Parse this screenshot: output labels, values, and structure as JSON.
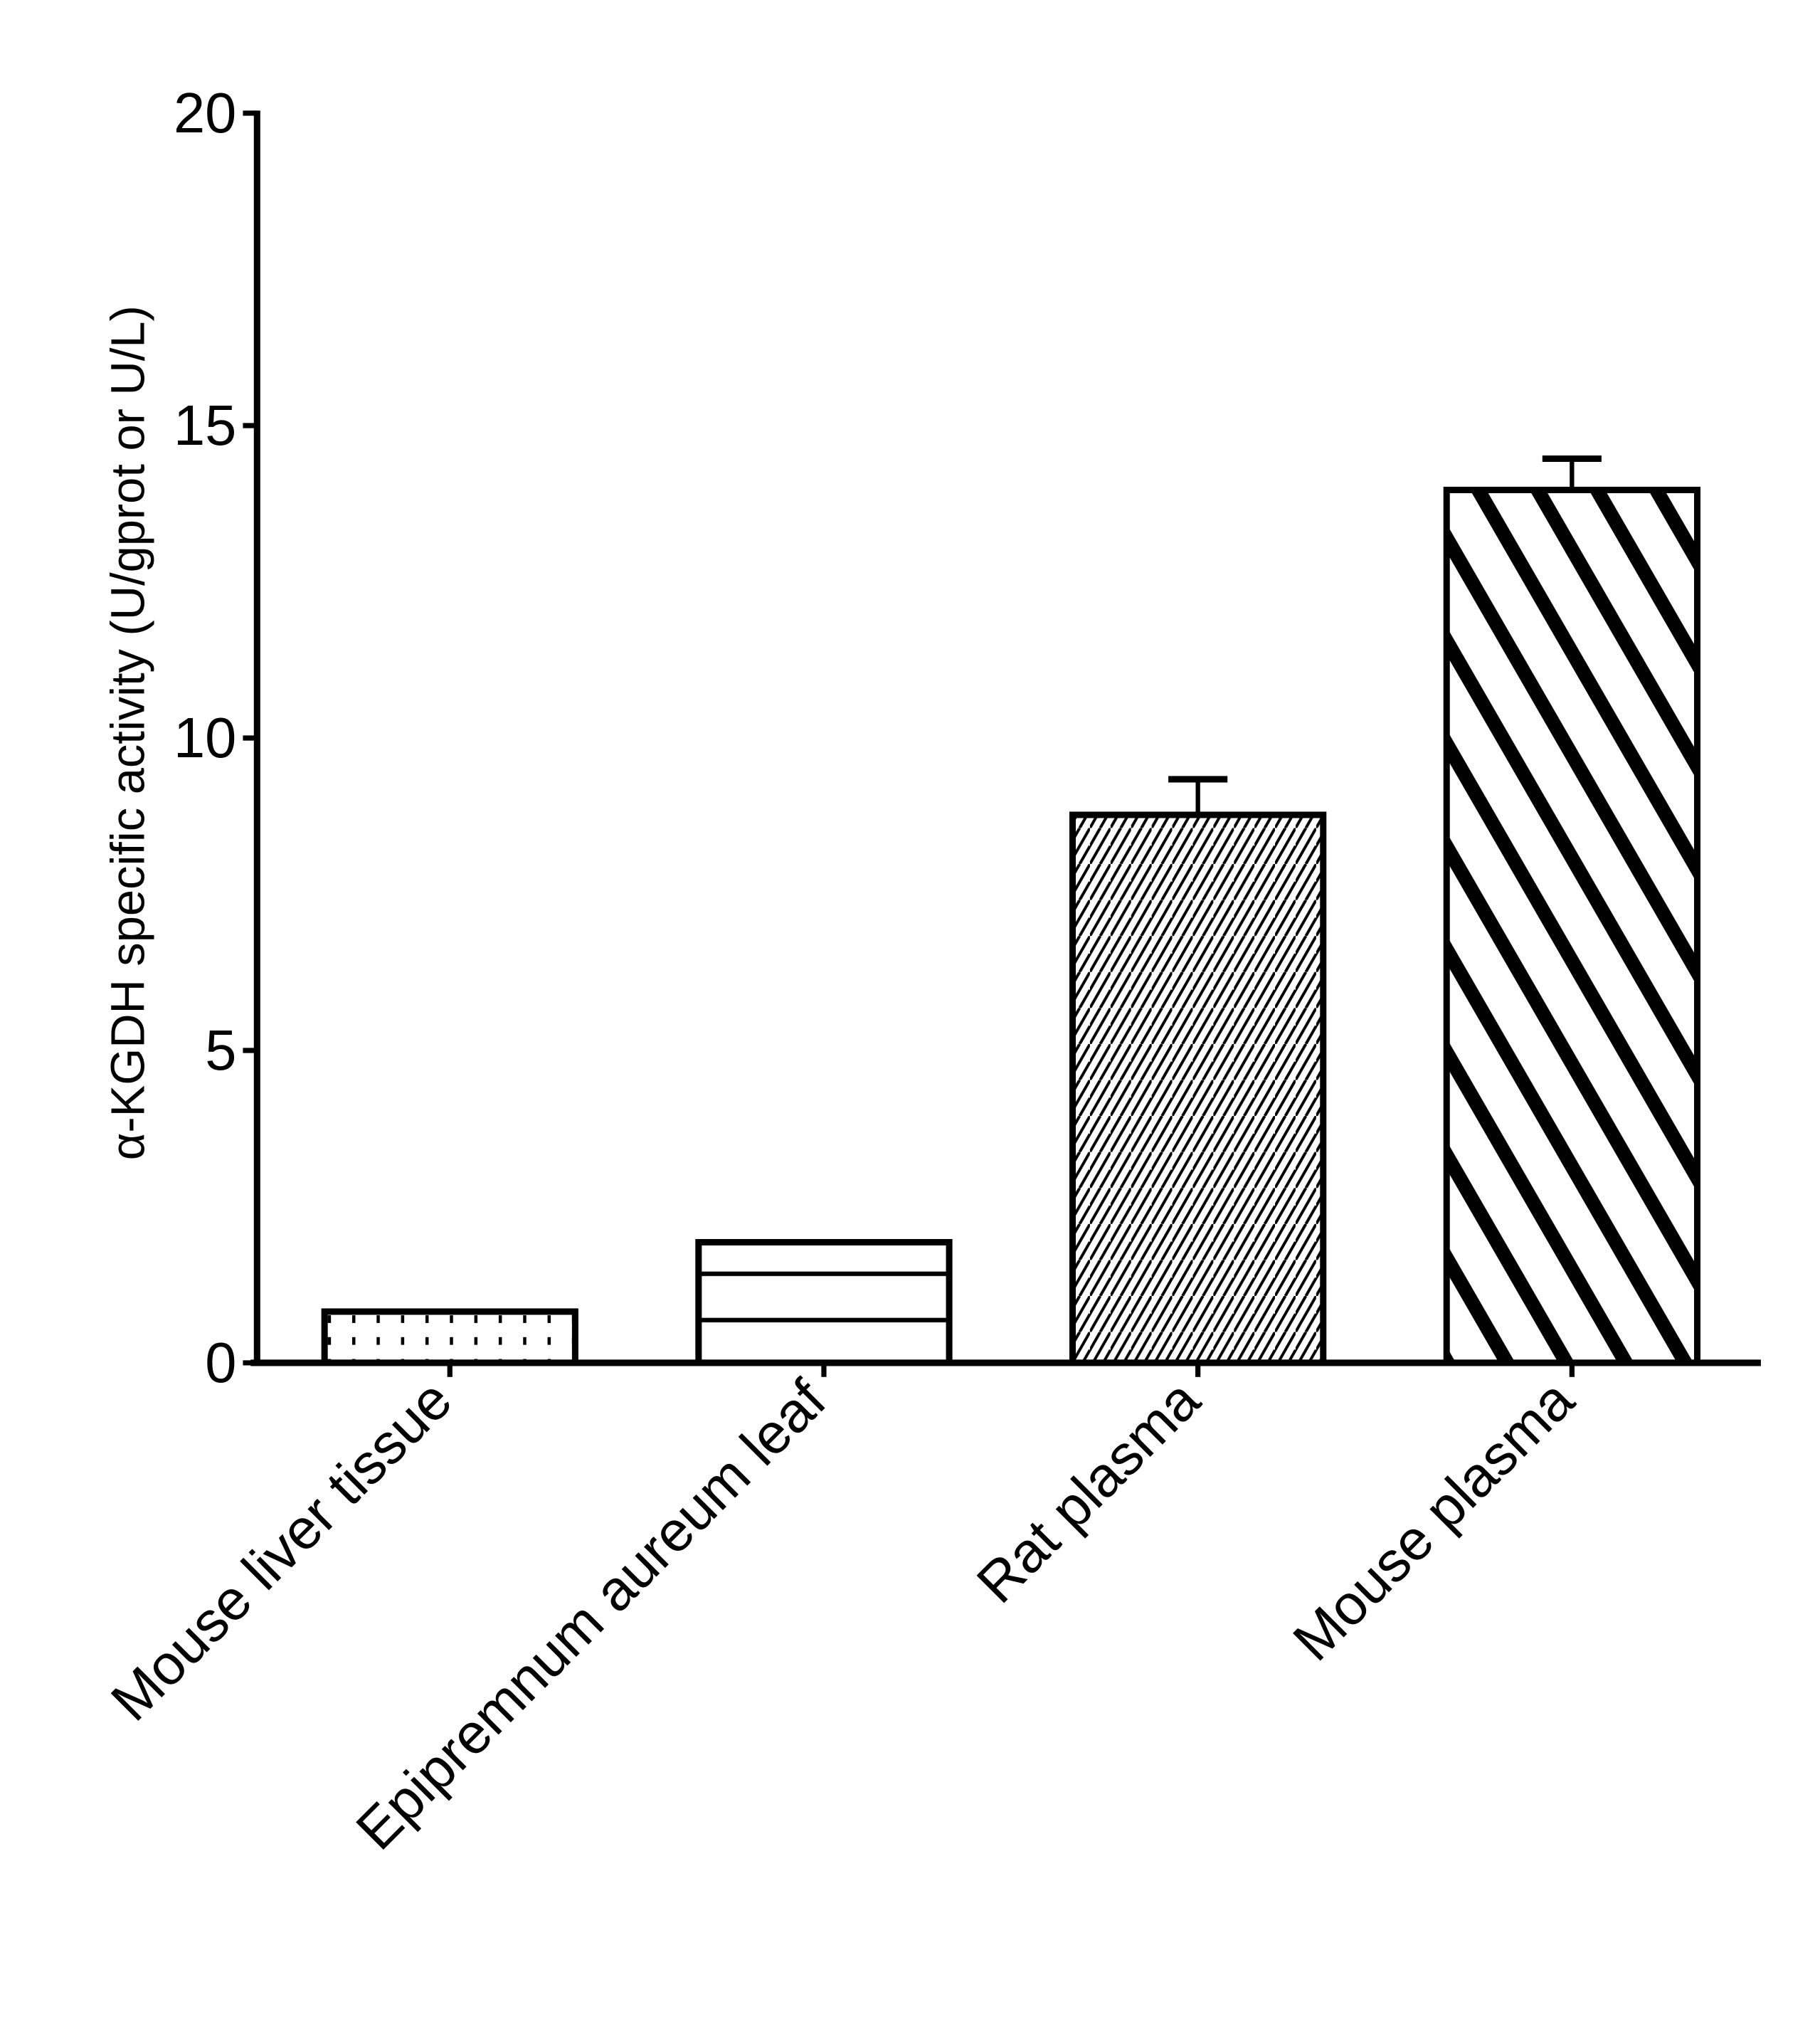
{
  "chart_data": {
    "type": "bar",
    "title": "",
    "xlabel": "",
    "ylabel": "α-KGDH specific activity (U/gprot or U/L)",
    "ylim": [
      0,
      20
    ],
    "yticks": [
      0,
      5,
      10,
      15,
      20
    ],
    "grid": false,
    "categories": [
      "Mouse liver tissue",
      "Epipremnum aureum leaf",
      "Rat plasma",
      "Mouse plasma"
    ],
    "values": [
      0.82,
      1.93,
      8.77,
      13.97
    ],
    "error_upper": [
      0.84,
      1.93,
      9.34,
      14.47
    ],
    "fill_patterns": [
      "dots",
      "horizontal-lines",
      "diagonal-crosshatch",
      "thick-diagonal-stripes"
    ],
    "colors": {
      "stroke": "#000000",
      "background": "#ffffff"
    }
  }
}
